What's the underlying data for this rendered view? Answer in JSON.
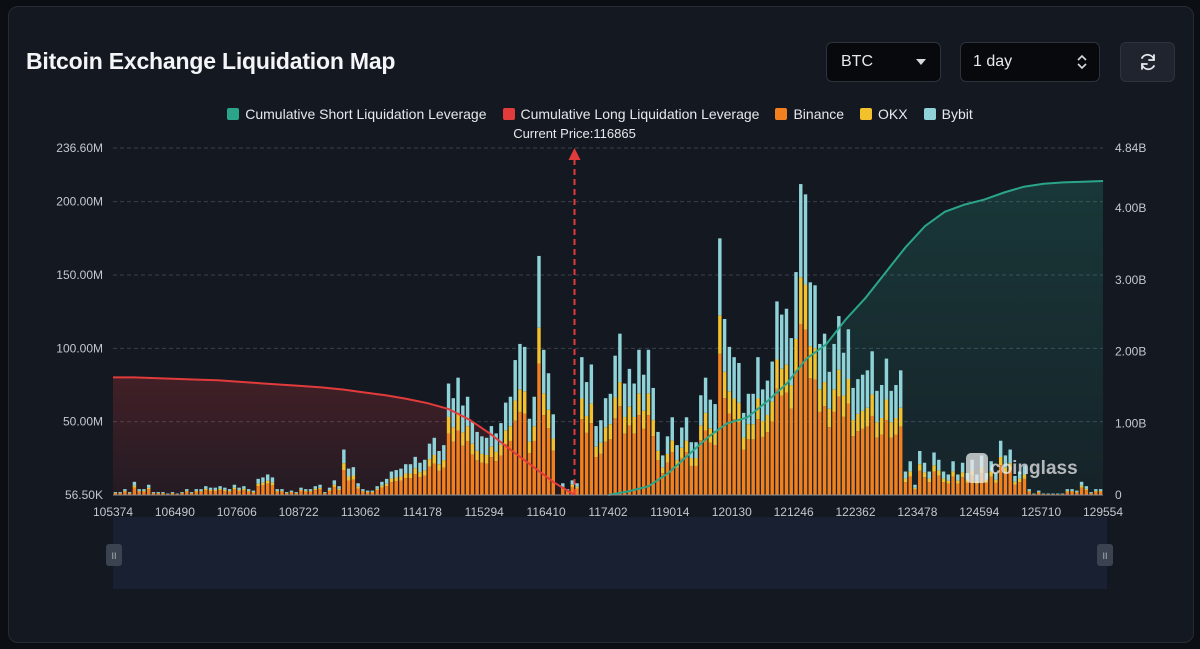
{
  "header": {
    "title": "Bitcoin Exchange Liquidation Map",
    "coin_select": "BTC",
    "range_select": "1 day"
  },
  "colors": {
    "short_cum": "#2aa58a",
    "long_cum": "#e23b3b",
    "binance": "#f2801f",
    "okx": "#f3c12c",
    "bybit": "#8fd3d8"
  },
  "watermark": "coinglass",
  "chart_data": {
    "type": "bar",
    "legend": [
      "Cumulative Short Liquidation Leverage",
      "Cumulative Long Liquidation Leverage",
      "Binance",
      "OKX",
      "Bybit"
    ],
    "current_price_label": "Current Price:116865",
    "current_price": 116865,
    "x_ticks": [
      "105374",
      "106490",
      "107606",
      "108722",
      "113062",
      "114178",
      "115294",
      "116410",
      "117402",
      "119014",
      "120130",
      "121246",
      "122362",
      "123478",
      "124594",
      "125710",
      "129554"
    ],
    "y_left_ticks": [
      "56.50K",
      "50.00M",
      "100.00M",
      "150.00M",
      "200.00M",
      "236.60M"
    ],
    "y_left_values": [
      0,
      50000000,
      100000000,
      150000000,
      200000000,
      236600000
    ],
    "y_right_ticks": [
      "0",
      "1.00B",
      "2.00B",
      "3.00B",
      "4.00B",
      "4.84B"
    ],
    "y_right_values": [
      0,
      1000000000,
      2000000000,
      3000000000,
      4000000000,
      4840000000
    ],
    "ylim_left": [
      0,
      236600000
    ],
    "ylim_right": [
      0,
      4840000000
    ],
    "bar_totals_M": [
      2,
      2,
      4,
      2,
      9,
      4,
      4,
      7,
      2,
      2,
      2,
      1,
      2,
      1,
      2,
      4,
      2,
      4,
      4,
      6,
      5,
      5,
      6,
      5,
      4,
      7,
      5,
      6,
      4,
      3,
      11,
      12,
      14,
      12,
      4,
      4,
      2,
      3,
      2,
      5,
      4,
      4,
      6,
      7,
      2,
      5,
      10,
      6,
      31,
      18,
      19,
      8,
      4,
      3,
      3,
      6,
      9,
      11,
      16,
      17,
      18,
      21,
      21,
      26,
      22,
      24,
      35,
      39,
      30,
      34,
      76,
      66,
      80,
      61,
      67,
      50,
      43,
      40,
      39,
      47,
      42,
      49,
      63,
      67,
      92,
      103,
      101,
      52,
      67,
      163,
      99,
      83,
      55,
      0,
      8,
      4,
      10,
      8,
      94,
      77,
      89,
      47,
      51,
      66,
      69,
      95,
      110,
      76,
      86,
      76,
      99,
      82,
      99,
      73,
      43,
      27,
      40,
      53,
      34,
      46,
      53,
      36,
      36,
      68,
      80,
      65,
      62,
      175,
      120,
      101,
      94,
      90,
      56,
      69,
      69,
      94,
      72,
      78,
      91,
      132,
      123,
      127,
      107,
      152,
      212,
      205,
      145,
      143,
      103,
      110,
      84,
      103,
      122,
      97,
      113,
      73,
      79,
      82,
      85,
      98,
      71,
      75,
      93,
      71,
      75,
      85,
      16,
      23,
      7,
      30,
      22,
      16,
      29,
      24,
      16,
      14,
      23,
      14,
      22,
      15,
      24,
      14,
      27,
      15,
      23,
      15,
      37,
      27,
      31,
      13,
      16,
      20,
      4,
      1,
      3,
      1,
      1,
      1,
      1,
      1,
      4,
      4,
      3,
      9,
      6,
      2,
      4,
      4
    ],
    "bar_mix": {
      "binance": 0.55,
      "okx": 0.15,
      "bybit": 0.3
    },
    "long_cum_B": [
      1.64,
      1.64,
      1.63,
      1.62,
      1.61,
      1.6,
      1.58,
      1.56,
      1.54,
      1.52,
      1.5,
      1.47,
      1.43,
      1.39,
      1.34,
      1.28,
      1.2,
      1.05,
      0.85,
      0.62,
      0.4,
      0.18,
      0
    ],
    "short_cum_B": [
      0,
      0.05,
      0.12,
      0.3,
      0.55,
      0.8,
      1.0,
      1.08,
      1.3,
      1.55,
      1.9,
      2.1,
      2.45,
      2.75,
      3.1,
      3.45,
      3.75,
      3.95,
      4.05,
      4.12,
      4.22,
      4.3,
      4.34,
      4.36,
      4.37,
      4.38
    ]
  }
}
